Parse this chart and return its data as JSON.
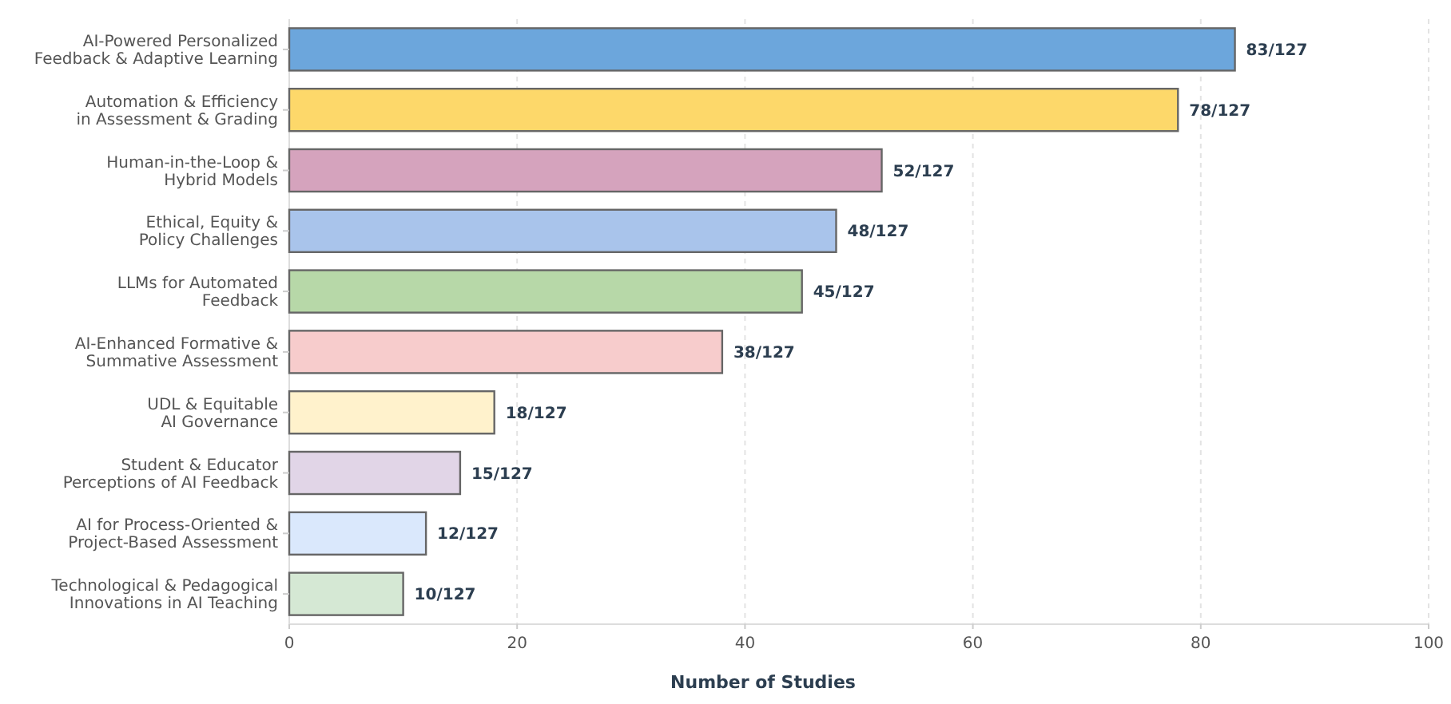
{
  "chart_data": {
    "type": "bar",
    "orientation": "horizontal",
    "xlabel": "Number of Studies",
    "categories": [
      "AI-Powered Personalized\nFeedback & Adaptive Learning",
      "Automation & Efficiency\nin Assessment & Grading",
      "Human-in-the-Loop &\nHybrid Models",
      "Ethical, Equity &\nPolicy Challenges",
      "LLMs for Automated\nFeedback",
      "AI-Enhanced Formative &\nSummative Assessment",
      "UDL & Equitable\nAI Governance",
      "Student & Educator\nPerceptions of AI Feedback",
      "AI for Process-Oriented &\nProject-Based Assessment",
      "Technological & Pedagogical\nInnovations in AI Teaching"
    ],
    "values": [
      83,
      78,
      52,
      48,
      45,
      38,
      18,
      15,
      12,
      10
    ],
    "colors": [
      "#6ca6dc",
      "#fdd86a",
      "#d5a3bd",
      "#a9c4eb",
      "#b7d8a8",
      "#f7cccc",
      "#fff2cc",
      "#e1d5e7",
      "#dae8fc",
      "#d5e8d4"
    ],
    "value_labels": [
      "83/127",
      "78/127",
      "52/127",
      "48/127",
      "45/127",
      "38/127",
      "18/127",
      "15/127",
      "12/127",
      "10/127"
    ],
    "xlim": [
      0,
      100
    ],
    "xticks": [
      0,
      20,
      40,
      60,
      80,
      100
    ],
    "grid": "x"
  }
}
